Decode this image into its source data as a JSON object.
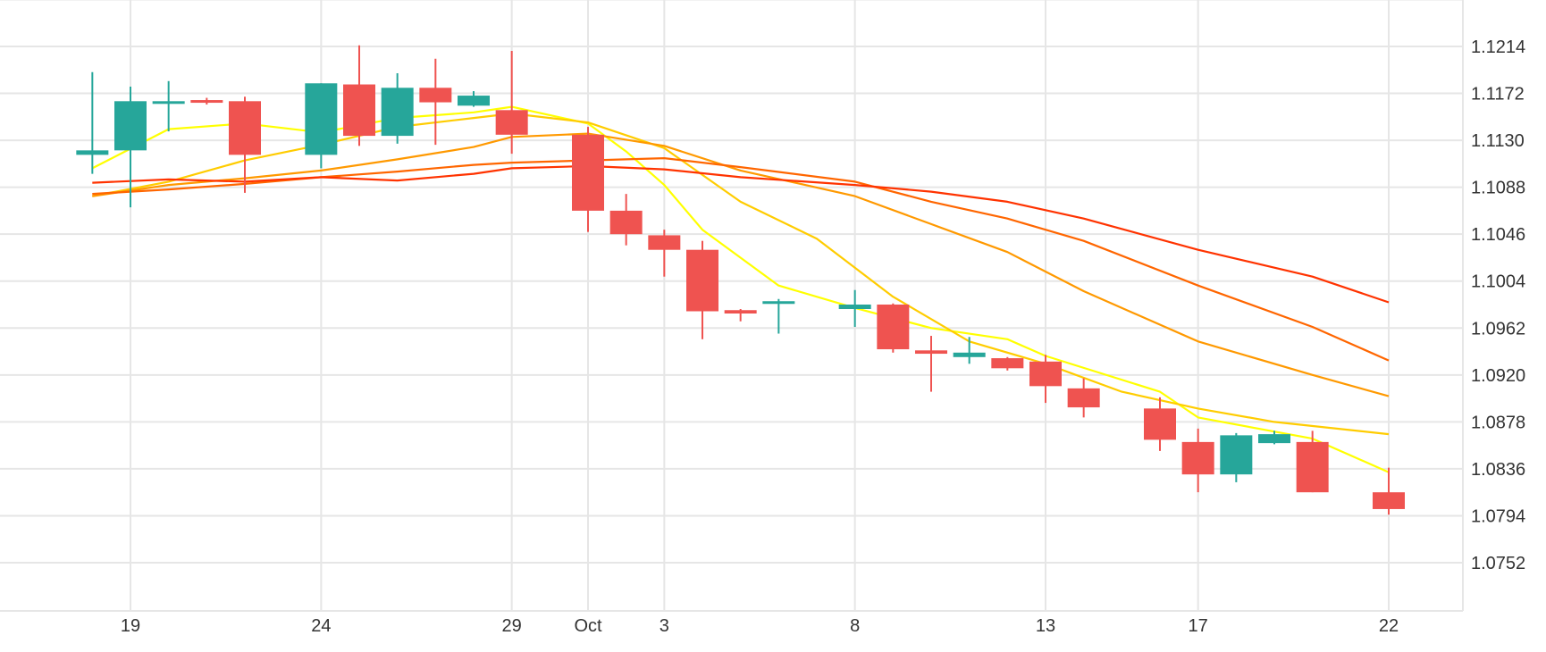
{
  "colors": {
    "up": "#26a69a",
    "down": "#ef5350",
    "grid": "#e6e6e6",
    "text": "#333333",
    "ma_colors": [
      "#ffff00",
      "#ffcc00",
      "#ff9900",
      "#ff6600",
      "#ff3300"
    ]
  },
  "chart_data": {
    "type": "candlestick",
    "grid": true,
    "y_axis_position": "right",
    "x_tick_labels": [
      {
        "label": "19",
        "date": "2023-09-19"
      },
      {
        "label": "24",
        "date": "2023-09-24"
      },
      {
        "label": "29",
        "date": "2023-09-29"
      },
      {
        "label": "Oct",
        "date": "2023-10-01"
      },
      {
        "label": "3",
        "date": "2023-10-03"
      },
      {
        "label": "8",
        "date": "2023-10-08"
      },
      {
        "label": "13",
        "date": "2023-10-13"
      },
      {
        "label": "17",
        "date": "2023-10-17"
      },
      {
        "label": "22",
        "date": "2023-10-22"
      }
    ],
    "y_ticks": [
      "1.1214",
      "1.1172",
      "1.1130",
      "1.1088",
      "1.1046",
      "1.1004",
      "1.0962",
      "1.0920",
      "1.0878",
      "1.0836",
      "1.0794",
      "1.0752"
    ],
    "ylim": [
      1.071,
      1.1256
    ],
    "xlim": [
      "2023-09-17T00:00",
      "2023-10-23T04:00"
    ],
    "candles": [
      {
        "date": "2023-09-18",
        "open": 1.1117,
        "high": 1.1191,
        "low": 1.11,
        "close": 1.1121
      },
      {
        "date": "2023-09-19",
        "open": 1.1121,
        "high": 1.1178,
        "low": 1.107,
        "close": 1.1165
      },
      {
        "date": "2023-09-20",
        "open": 1.1164,
        "high": 1.1183,
        "low": 1.1138,
        "close": 1.1165
      },
      {
        "date": "2023-09-21",
        "open": 1.1166,
        "high": 1.1168,
        "low": 1.1162,
        "close": 1.1164
      },
      {
        "date": "2023-09-22",
        "open": 1.1165,
        "high": 1.1169,
        "low": 1.1083,
        "close": 1.1117
      },
      {
        "date": "2023-09-24",
        "open": 1.1117,
        "high": 1.1181,
        "low": 1.1105,
        "close": 1.1181
      },
      {
        "date": "2023-09-25",
        "open": 1.118,
        "high": 1.1215,
        "low": 1.1125,
        "close": 1.1134
      },
      {
        "date": "2023-09-26",
        "open": 1.1134,
        "high": 1.119,
        "low": 1.1127,
        "close": 1.1177
      },
      {
        "date": "2023-09-27",
        "open": 1.1177,
        "high": 1.1203,
        "low": 1.1126,
        "close": 1.1164
      },
      {
        "date": "2023-09-28",
        "open": 1.1161,
        "high": 1.1174,
        "low": 1.116,
        "close": 1.117
      },
      {
        "date": "2023-09-29",
        "open": 1.1157,
        "high": 1.121,
        "low": 1.1118,
        "close": 1.1135
      },
      {
        "date": "2023-10-01",
        "open": 1.1135,
        "high": 1.1142,
        "low": 1.1048,
        "close": 1.1067
      },
      {
        "date": "2023-10-02",
        "open": 1.1067,
        "high": 1.1082,
        "low": 1.1036,
        "close": 1.1046
      },
      {
        "date": "2023-10-03",
        "open": 1.1045,
        "high": 1.105,
        "low": 1.1008,
        "close": 1.1032
      },
      {
        "date": "2023-10-04",
        "open": 1.1032,
        "high": 1.104,
        "low": 1.0952,
        "close": 1.0977
      },
      {
        "date": "2023-10-05",
        "open": 1.0978,
        "high": 1.0979,
        "low": 1.0968,
        "close": 1.0975
      },
      {
        "date": "2023-10-06",
        "open": 1.0986,
        "high": 1.0988,
        "low": 1.0957,
        "close": 1.0986
      },
      {
        "date": "2023-10-08",
        "open": 1.0979,
        "high": 1.0996,
        "low": 1.0963,
        "close": 1.0983
      },
      {
        "date": "2023-10-09",
        "open": 1.0983,
        "high": 1.0984,
        "low": 1.094,
        "close": 1.0943
      },
      {
        "date": "2023-10-10",
        "open": 1.0942,
        "high": 1.0955,
        "low": 1.0905,
        "close": 1.0939
      },
      {
        "date": "2023-10-11",
        "open": 1.0936,
        "high": 1.0954,
        "low": 1.093,
        "close": 1.094
      },
      {
        "date": "2023-10-12",
        "open": 1.0935,
        "high": 1.0936,
        "low": 1.0924,
        "close": 1.0926
      },
      {
        "date": "2023-10-13",
        "open": 1.0932,
        "high": 1.0938,
        "low": 1.0895,
        "close": 1.091
      },
      {
        "date": "2023-10-14",
        "open": 1.0908,
        "high": 1.0917,
        "low": 1.0882,
        "close": 1.0891
      },
      {
        "date": "2023-10-16",
        "open": 1.089,
        "high": 1.09,
        "low": 1.0852,
        "close": 1.0862
      },
      {
        "date": "2023-10-17",
        "open": 1.086,
        "high": 1.0872,
        "low": 1.0815,
        "close": 1.0831
      },
      {
        "date": "2023-10-18",
        "open": 1.0831,
        "high": 1.0868,
        "low": 1.0824,
        "close": 1.0866
      },
      {
        "date": "2023-10-19",
        "open": 1.0859,
        "high": 1.087,
        "low": 1.0858,
        "close": 1.0867
      },
      {
        "date": "2023-10-20",
        "open": 1.086,
        "high": 1.087,
        "low": 1.0815,
        "close": 1.0815
      },
      {
        "date": "2023-10-22",
        "open": 1.0815,
        "high": 1.0837,
        "low": 1.0795,
        "close": 1.08
      }
    ],
    "moving_averages": [
      {
        "color": "#ffff00",
        "points": [
          [
            "2023-09-18",
            1.1105
          ],
          [
            "2023-09-20",
            1.114
          ],
          [
            "2023-09-22",
            1.1145
          ],
          [
            "2023-09-24",
            1.1137
          ],
          [
            "2023-09-26",
            1.115
          ],
          [
            "2023-09-28",
            1.1155
          ],
          [
            "2023-09-29",
            1.116
          ],
          [
            "2023-10-01",
            1.1145
          ],
          [
            "2023-10-02",
            1.112
          ],
          [
            "2023-10-03",
            1.109
          ],
          [
            "2023-10-04",
            1.105
          ],
          [
            "2023-10-06",
            1.1
          ],
          [
            "2023-10-08",
            1.098
          ],
          [
            "2023-10-10",
            1.0962
          ],
          [
            "2023-10-12",
            1.0952
          ],
          [
            "2023-10-13",
            1.0937
          ],
          [
            "2023-10-16",
            1.0905
          ],
          [
            "2023-10-17",
            1.0882
          ],
          [
            "2023-10-20",
            1.0863
          ],
          [
            "2023-10-22",
            1.0833
          ]
        ]
      },
      {
        "color": "#ffcc00",
        "points": [
          [
            "2023-09-18",
            1.108
          ],
          [
            "2023-09-20",
            1.1093
          ],
          [
            "2023-09-22",
            1.1112
          ],
          [
            "2023-09-24",
            1.1126
          ],
          [
            "2023-09-26",
            1.1142
          ],
          [
            "2023-09-28",
            1.115
          ],
          [
            "2023-09-29",
            1.1154
          ],
          [
            "2023-10-01",
            1.1146
          ],
          [
            "2023-10-03",
            1.1123
          ],
          [
            "2023-10-05",
            1.1075
          ],
          [
            "2023-10-07",
            1.1042
          ],
          [
            "2023-10-09",
            1.099
          ],
          [
            "2023-10-11",
            1.095
          ],
          [
            "2023-10-13",
            1.093
          ],
          [
            "2023-10-15",
            1.0905
          ],
          [
            "2023-10-17",
            1.089
          ],
          [
            "2023-10-19",
            1.0878
          ],
          [
            "2023-10-22",
            1.0867
          ]
        ]
      },
      {
        "color": "#ff9900",
        "points": [
          [
            "2023-09-18",
            1.108
          ],
          [
            "2023-09-20",
            1.109
          ],
          [
            "2023-09-22",
            1.1096
          ],
          [
            "2023-09-24",
            1.1103
          ],
          [
            "2023-09-26",
            1.1113
          ],
          [
            "2023-09-28",
            1.1124
          ],
          [
            "2023-09-29",
            1.1133
          ],
          [
            "2023-10-01",
            1.1136
          ],
          [
            "2023-10-03",
            1.1125
          ],
          [
            "2023-10-05",
            1.1103
          ],
          [
            "2023-10-08",
            1.108
          ],
          [
            "2023-10-10",
            1.1055
          ],
          [
            "2023-10-12",
            1.103
          ],
          [
            "2023-10-14",
            1.0995
          ],
          [
            "2023-10-17",
            1.095
          ],
          [
            "2023-10-20",
            1.092
          ],
          [
            "2023-10-22",
            1.0901
          ]
        ]
      },
      {
        "color": "#ff6600",
        "points": [
          [
            "2023-09-18",
            1.1082
          ],
          [
            "2023-09-20",
            1.1086
          ],
          [
            "2023-09-22",
            1.1091
          ],
          [
            "2023-09-24",
            1.1097
          ],
          [
            "2023-09-26",
            1.1102
          ],
          [
            "2023-09-28",
            1.1108
          ],
          [
            "2023-09-29",
            1.111
          ],
          [
            "2023-10-01",
            1.1112
          ],
          [
            "2023-10-03",
            1.1114
          ],
          [
            "2023-10-05",
            1.1106
          ],
          [
            "2023-10-08",
            1.1093
          ],
          [
            "2023-10-10",
            1.1075
          ],
          [
            "2023-10-12",
            1.106
          ],
          [
            "2023-10-14",
            1.104
          ],
          [
            "2023-10-17",
            1.1
          ],
          [
            "2023-10-20",
            1.0963
          ],
          [
            "2023-10-22",
            1.0933
          ]
        ]
      },
      {
        "color": "#ff3300",
        "points": [
          [
            "2023-09-18",
            1.1092
          ],
          [
            "2023-09-20",
            1.1095
          ],
          [
            "2023-09-22",
            1.1093
          ],
          [
            "2023-09-24",
            1.1097
          ],
          [
            "2023-09-26",
            1.1094
          ],
          [
            "2023-09-28",
            1.11
          ],
          [
            "2023-09-29",
            1.1105
          ],
          [
            "2023-10-01",
            1.1107
          ],
          [
            "2023-10-03",
            1.1104
          ],
          [
            "2023-10-05",
            1.1097
          ],
          [
            "2023-10-08",
            1.109
          ],
          [
            "2023-10-10",
            1.1084
          ],
          [
            "2023-10-12",
            1.1075
          ],
          [
            "2023-10-14",
            1.106
          ],
          [
            "2023-10-17",
            1.1032
          ],
          [
            "2023-10-20",
            1.1008
          ],
          [
            "2023-10-22",
            1.0985
          ]
        ]
      }
    ]
  }
}
